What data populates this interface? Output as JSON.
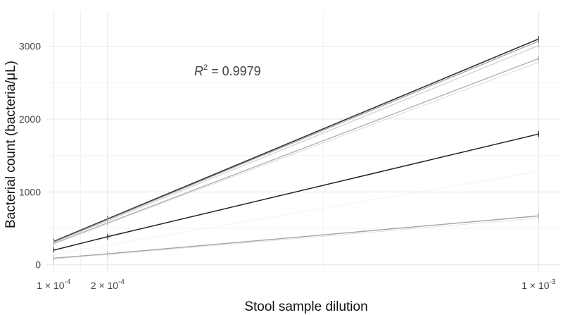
{
  "chart_data": {
    "type": "line",
    "xscale": "linear",
    "x": [
      0.0001,
      0.0002,
      0.001
    ],
    "xlim": [
      8.65e-05,
      0.00104
    ],
    "ylim": [
      -90,
      3480
    ],
    "xticks": [
      {
        "value": 0.0001,
        "mantissa": "1",
        "exponent": "-4"
      },
      {
        "value": 0.0002,
        "mantissa": "2",
        "exponent": "-4"
      },
      {
        "value": 0.001,
        "mantissa": "1",
        "exponent": "-3"
      }
    ],
    "x_minor_grid": [
      0.00015,
      0.0006
    ],
    "yticks": [
      0,
      1000,
      2000,
      3000
    ],
    "ytick_labels": [
      "0",
      "1000",
      "2000",
      "3000"
    ],
    "y_minor_grid": [
      500,
      1500,
      2500
    ],
    "xlabel": "Stool sample dilution",
    "ylabel": "Bacterial count (bacteria/μL)",
    "annotation": {
      "r_symbol": "R",
      "exponent": "2",
      "equals": " = ",
      "value": "0.9979"
    },
    "grid": true,
    "series": [
      {
        "values": [
          320,
          630,
          3100
        ],
        "color": "#333333",
        "opacity": 1.0,
        "width": 1.6
      },
      {
        "values": [
          312,
          620,
          3070
        ],
        "color": "#888888",
        "opacity": 0.8,
        "width": 1.2
      },
      {
        "values": [
          305,
          605,
          3010
        ],
        "color": "#bbbbbb",
        "opacity": 0.7,
        "width": 1.2
      },
      {
        "values": [
          290,
          575,
          2830
        ],
        "color": "#999999",
        "opacity": 0.8,
        "width": 1.3
      },
      {
        "values": [
          285,
          565,
          2780
        ],
        "color": "#cccccc",
        "opacity": 0.6,
        "width": 1.2
      },
      {
        "values": [
          200,
          385,
          1795
        ],
        "color": "#222222",
        "opacity": 1.0,
        "width": 1.5
      },
      {
        "values": [
          140,
          270,
          1280
        ],
        "color": "#eeeeee",
        "opacity": 0.7,
        "width": 1.0
      },
      {
        "values": [
          90,
          150,
          670
        ],
        "color": "#999999",
        "opacity": 0.9,
        "width": 1.4
      },
      {
        "values": [
          80,
          140,
          640
        ],
        "color": "#cfcfcf",
        "opacity": 0.6,
        "width": 1.0
      }
    ]
  }
}
